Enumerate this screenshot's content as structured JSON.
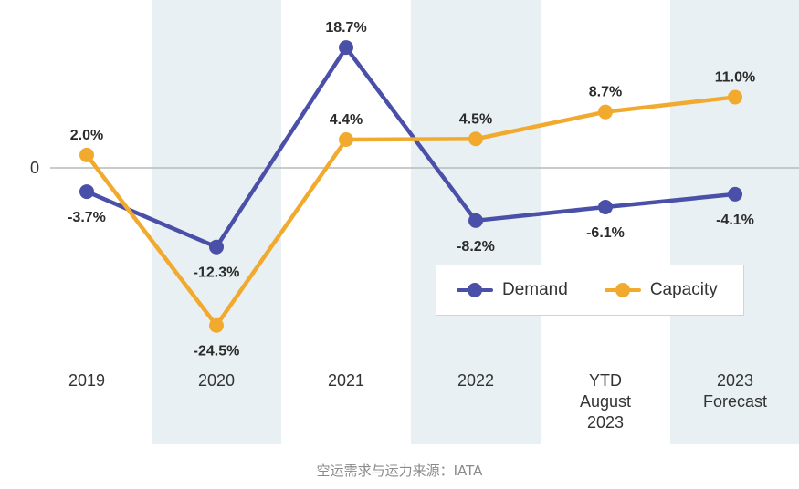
{
  "chart_data": {
    "type": "line",
    "title": "",
    "xlabel": "",
    "ylabel": "",
    "zero_label": "0",
    "categories": [
      [
        "2019"
      ],
      [
        "2020"
      ],
      [
        "2021"
      ],
      [
        "2022"
      ],
      [
        "YTD",
        "August",
        "2023"
      ],
      [
        "2023",
        "Forecast"
      ]
    ],
    "shaded_categories": [
      1,
      3,
      5
    ],
    "series": [
      {
        "name": "Demand",
        "color": "#4a4fa8",
        "values": [
          -3.7,
          -12.3,
          18.7,
          -8.2,
          -6.1,
          -4.1
        ],
        "labels": [
          "-3.7%",
          "-12.3%",
          "18.7%",
          "-8.2%",
          "-6.1%",
          "-4.1%"
        ],
        "label_positions": [
          "below",
          "below",
          "above",
          "below",
          "below",
          "below"
        ]
      },
      {
        "name": "Capacity",
        "color": "#f2aa2e",
        "values": [
          2.0,
          -24.5,
          4.4,
          4.5,
          8.7,
          11.0
        ],
        "labels": [
          "2.0%",
          "-24.5%",
          "4.4%",
          "4.5%",
          "8.7%",
          "11.0%"
        ],
        "label_positions": [
          "above",
          "below",
          "above",
          "above",
          "above",
          "above"
        ]
      }
    ],
    "ylim": [
      -27,
      24
    ],
    "grid": false,
    "legend": {
      "placement": "bottom-right",
      "entries": [
        "Demand",
        "Capacity"
      ]
    },
    "band_color": "#e8f0f3",
    "zero_line_color": "#b5b9bc"
  },
  "caption": "空运需求与运力来源：IATA"
}
